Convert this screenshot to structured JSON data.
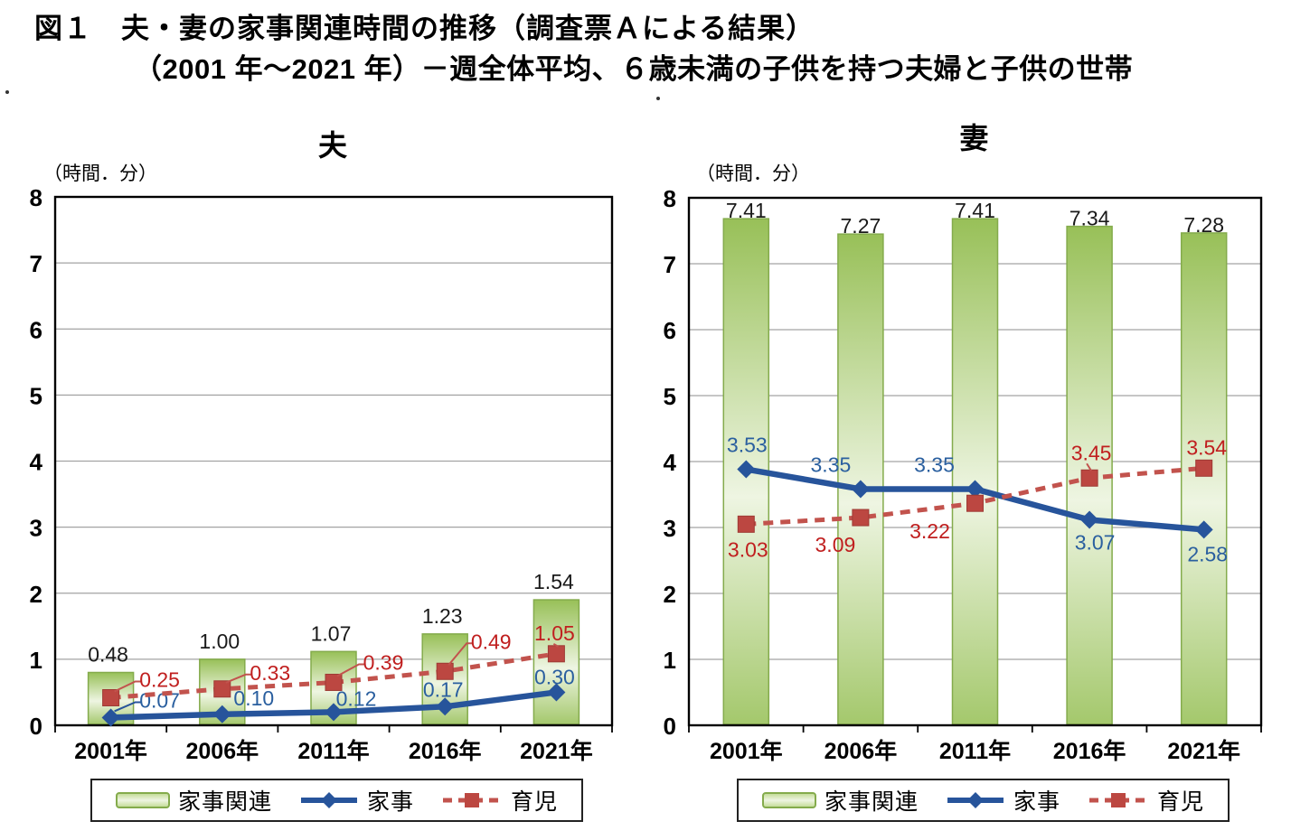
{
  "title": {
    "line1": "図１　夫・妻の家事関連時間の推移（調査票Ａによる結果）",
    "line2": "（2001 年～2021 年）－週全体平均、６歳未満の子供を持つ夫婦と子供の世帯"
  },
  "colors": {
    "bar_fill_top": "#98c058",
    "bar_fill_light": "#eef5e2",
    "bar_fill_bottom": "#a4c86c",
    "bar_border": "#84ab4c",
    "kaji_line": "#27549b",
    "kaji_label": "#2a5f9f",
    "ikuji_line": "#c2534d",
    "ikuji_marker": "#bc4741",
    "ikuji_label": "#c01f1f",
    "bar_label": "#1a1a1a",
    "grid": "#a3a3a3",
    "axis": "#000000"
  },
  "chart_data": [
    {
      "type": "bar+line combo",
      "title": "夫",
      "unit_label": "（時間．分）",
      "categories": [
        "2001年",
        "2006年",
        "2011年",
        "2016年",
        "2021年"
      ],
      "ylim": [
        0,
        8
      ],
      "yticks": [
        0,
        1,
        2,
        3,
        4,
        5,
        6,
        7,
        8
      ],
      "grid": true,
      "legend_position": "bottom",
      "value_format": "hours.minutes",
      "series": [
        {
          "name": "家事関連",
          "type": "bar",
          "display": [
            "0.48",
            "1.00",
            "1.07",
            "1.23",
            "1.54"
          ],
          "plot_values": [
            0.8,
            1.0,
            1.117,
            1.383,
            1.9
          ],
          "label_offset": [
            -3,
            -20
          ]
        },
        {
          "name": "家事",
          "type": "line",
          "display": [
            "0.07",
            "0.10",
            "0.12",
            "0.17",
            "0.30"
          ],
          "plot_values": [
            0.117,
            0.167,
            0.2,
            0.283,
            0.5
          ],
          "label_offsets": [
            [
              54,
              -19
            ],
            [
              35,
              -18
            ],
            [
              25,
              -15
            ],
            [
              -2,
              -19
            ],
            [
              -2,
              -17
            ]
          ],
          "connectors": [
            true,
            false,
            false,
            false,
            false
          ]
        },
        {
          "name": "育児",
          "type": "dashed-line",
          "display": [
            "0.25",
            "0.33",
            "0.39",
            "0.49",
            "1.05"
          ],
          "plot_values": [
            0.417,
            0.55,
            0.65,
            0.817,
            1.083
          ],
          "label_offsets": [
            [
              54,
              -20
            ],
            [
              53,
              -18
            ],
            [
              55,
              -22
            ],
            [
              51,
              -33
            ],
            [
              -2,
              -23
            ]
          ],
          "connectors": [
            true,
            true,
            true,
            true,
            true
          ]
        }
      ]
    },
    {
      "type": "bar+line combo",
      "title": "妻",
      "unit_label": "（時間．分）",
      "categories": [
        "2001年",
        "2006年",
        "2011年",
        "2016年",
        "2021年"
      ],
      "ylim": [
        0,
        8
      ],
      "yticks": [
        0,
        1,
        2,
        3,
        4,
        5,
        6,
        7,
        8
      ],
      "grid": true,
      "legend_position": "bottom",
      "value_format": "hours.minutes",
      "series": [
        {
          "name": "家事関連",
          "type": "bar",
          "display": [
            "7.41",
            "7.27",
            "7.41",
            "7.34",
            "7.28"
          ],
          "plot_values": [
            7.683,
            7.45,
            7.683,
            7.567,
            7.467
          ],
          "label_offset": [
            0,
            -9
          ]
        },
        {
          "name": "家事",
          "type": "line",
          "display": [
            "3.53",
            "3.35",
            "3.35",
            "3.07",
            "2.58"
          ],
          "plot_values": [
            3.883,
            3.583,
            3.583,
            3.117,
            2.967
          ],
          "label_offsets": [
            [
              1,
              -27
            ],
            [
              -33,
              -27
            ],
            [
              -45,
              -27
            ],
            [
              6,
              25
            ],
            [
              4,
              27
            ]
          ],
          "connectors": [
            false,
            false,
            false,
            false,
            false
          ]
        },
        {
          "name": "育児",
          "type": "dashed-line",
          "display": [
            "3.03",
            "3.09",
            "3.22",
            "3.45",
            "3.54"
          ],
          "plot_values": [
            3.05,
            3.15,
            3.367,
            3.75,
            3.9
          ],
          "label_offsets": [
            [
              2,
              28
            ],
            [
              -28,
              30
            ],
            [
              -50,
              31
            ],
            [
              2,
              -28
            ],
            [
              3,
              -23
            ]
          ],
          "connectors": [
            false,
            false,
            false,
            true,
            false
          ]
        }
      ]
    }
  ]
}
